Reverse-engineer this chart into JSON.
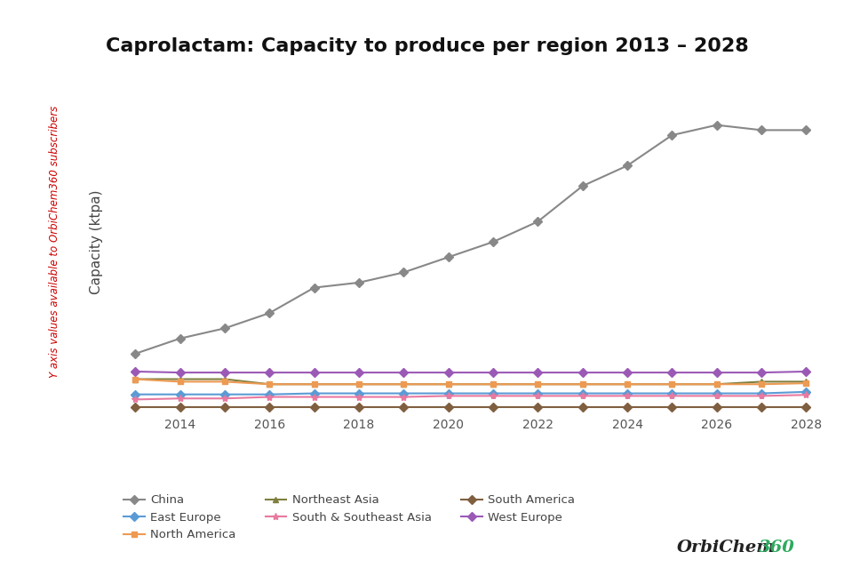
{
  "title": "Caprolactam: Capacity to produce per region 2013 – 2028",
  "ylabel": "Capacity (ktpa)",
  "watermark": "Y axis values available to OrbiChem360 subscribers",
  "years": [
    2013,
    2014,
    2015,
    2016,
    2017,
    2018,
    2019,
    2020,
    2021,
    2022,
    2023,
    2024,
    2025,
    2026,
    2027,
    2028
  ],
  "series": {
    "China": {
      "color": "#888888",
      "marker": "D",
      "markersize": 5,
      "values": [
        14,
        17,
        19,
        22,
        27,
        28,
        30,
        33,
        36,
        40,
        47,
        51,
        57,
        59,
        58,
        58
      ]
    },
    "Northeast Asia": {
      "color": "#7f7f3f",
      "marker": "^",
      "markersize": 5,
      "values": [
        9,
        9,
        9,
        8,
        8,
        8,
        8,
        8,
        8,
        8,
        8,
        8,
        8,
        8,
        8.5,
        8.5
      ]
    },
    "West Europe": {
      "color": "#9b59b6",
      "marker": "D",
      "markersize": 5,
      "values": [
        10.5,
        10.3,
        10.3,
        10.3,
        10.3,
        10.3,
        10.3,
        10.3,
        10.3,
        10.3,
        10.3,
        10.3,
        10.3,
        10.3,
        10.3,
        10.5
      ]
    },
    "East Europe": {
      "color": "#5b9bd5",
      "marker": "D",
      "markersize": 5,
      "values": [
        6,
        6,
        6,
        6,
        6.2,
        6.2,
        6.2,
        6.2,
        6.2,
        6.2,
        6.2,
        6.2,
        6.2,
        6.2,
        6.2,
        6.5
      ]
    },
    "North America": {
      "color": "#ed9a52",
      "marker": "s",
      "markersize": 5,
      "values": [
        9,
        8.5,
        8.5,
        8,
        8,
        8,
        8,
        8,
        8,
        8,
        8,
        8,
        8,
        8,
        8,
        8.2
      ]
    },
    "South & Southeast Asia": {
      "color": "#e879a0",
      "marker": "*",
      "markersize": 6,
      "values": [
        5,
        5.2,
        5.2,
        5.5,
        5.5,
        5.5,
        5.5,
        5.7,
        5.7,
        5.7,
        5.7,
        5.7,
        5.7,
        5.7,
        5.7,
        5.9
      ]
    },
    "South America": {
      "color": "#7f5f3f",
      "marker": "D",
      "markersize": 5,
      "values": [
        3.5,
        3.5,
        3.5,
        3.5,
        3.5,
        3.5,
        3.5,
        3.5,
        3.5,
        3.5,
        3.5,
        3.5,
        3.5,
        3.5,
        3.5,
        3.5
      ]
    }
  },
  "background_color": "#ffffff",
  "grid_color": "#dddddd",
  "legend_order": [
    "China",
    "East Europe",
    "North America",
    "Northeast Asia",
    "South & Southeast Asia",
    "South America",
    "West Europe"
  ],
  "xlim": [
    2012.5,
    2028.8
  ],
  "ylim": [
    2,
    70
  ],
  "title_fontsize": 16,
  "ylabel_fontsize": 11,
  "xtick_fontsize": 10,
  "watermark_fontsize": 8.5,
  "legend_fontsize": 9.5
}
